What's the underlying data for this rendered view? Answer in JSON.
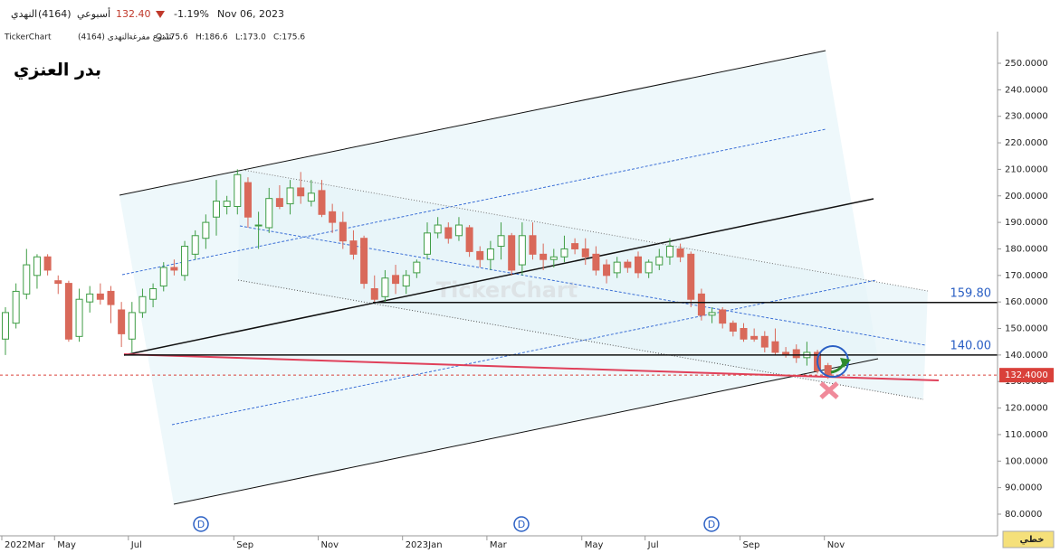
{
  "header": {
    "symbol_name": "النهدي",
    "symbol_code": "(4164)",
    "period": "أسبوعي",
    "price": "132.40",
    "change": "-1.19%",
    "date": "Nov 06, 2023",
    "source": "TickerChart",
    "instrument": "النهدى (4164)",
    "style": "شموع مفرغة",
    "o": "O:175.6",
    "h": "H:186.6",
    "l": "L:173.0",
    "c": "C:175.6",
    "author": "بدر العنزي",
    "watermark": "TickerChart",
    "mode_button": "خطي"
  },
  "chart_data": {
    "type": "candlestick",
    "categories": [
      "2022Mar",
      null,
      null,
      null,
      null,
      "May",
      null,
      null,
      null,
      null,
      null,
      null,
      "Jul",
      null,
      null,
      null,
      null,
      null,
      null,
      null,
      null,
      null,
      "Sep",
      null,
      null,
      null,
      null,
      null,
      null,
      null,
      "Nov",
      null,
      null,
      null,
      null,
      null,
      null,
      null,
      "2023Jan",
      null,
      null,
      null,
      null,
      null,
      null,
      null,
      "Mar",
      null,
      null,
      null,
      null,
      null,
      null,
      null,
      null,
      "May",
      null,
      null,
      null,
      null,
      null,
      "Jul",
      null,
      null,
      null,
      null,
      null,
      null,
      null,
      null,
      "Sep",
      null,
      null,
      null,
      null,
      null,
      null,
      null,
      "Nov"
    ],
    "open": [
      146,
      152,
      163,
      170,
      177,
      168,
      167,
      147,
      160,
      163,
      164,
      157,
      146,
      156,
      161,
      166,
      173,
      170,
      178,
      184,
      192,
      196,
      196,
      205,
      189,
      188,
      199,
      197,
      203,
      198,
      202,
      194,
      190,
      183,
      184,
      165,
      162,
      170,
      166,
      171,
      178,
      186,
      188,
      185,
      188,
      179,
      176,
      181,
      185,
      174,
      185,
      178,
      176,
      177,
      182,
      180,
      178,
      174,
      171,
      175,
      177,
      171,
      174,
      177,
      180,
      178,
      163,
      155,
      157,
      152,
      150,
      147,
      147,
      145,
      141,
      142,
      139,
      141,
      136
    ],
    "high": [
      158,
      167,
      180,
      178,
      178,
      170,
      168,
      165,
      166,
      167,
      166,
      160,
      160,
      165,
      167,
      175,
      176,
      183,
      187,
      193,
      206,
      200,
      210,
      207,
      194,
      203,
      204,
      206,
      209,
      206,
      206,
      197,
      194,
      187,
      185,
      170,
      172,
      174,
      172,
      176,
      190,
      192,
      190,
      192,
      189,
      181,
      183,
      190,
      186,
      190,
      190,
      182,
      180,
      185,
      184,
      184,
      181,
      176,
      177,
      176,
      179,
      176,
      180,
      184,
      182,
      179,
      165,
      158,
      158,
      153,
      152,
      150,
      149,
      150,
      143,
      144,
      145,
      142,
      137
    ],
    "low": [
      140,
      150,
      161,
      165,
      170,
      163,
      145,
      145,
      156,
      159,
      152,
      143,
      141,
      154,
      158,
      164,
      170,
      168,
      176,
      180,
      185,
      193,
      193,
      188,
      180,
      186,
      195,
      193,
      197,
      196,
      192,
      186,
      180,
      176,
      165,
      160,
      160,
      163,
      163,
      169,
      176,
      184,
      182,
      183,
      177,
      173,
      172,
      176,
      170,
      170,
      176,
      172,
      173,
      175,
      178,
      174,
      170,
      167,
      169,
      171,
      169,
      169,
      172,
      174,
      175,
      158,
      153,
      152,
      150,
      147,
      145,
      145,
      141,
      140,
      139,
      137,
      136,
      133,
      131
    ],
    "close": [
      156,
      164,
      174,
      177,
      172,
      167,
      146,
      161,
      163,
      161,
      159,
      148,
      156,
      162,
      165,
      173,
      172,
      181,
      185,
      190,
      198,
      198,
      208,
      192,
      189,
      199,
      196,
      203,
      200,
      201,
      193,
      190,
      183,
      178,
      167,
      161,
      169,
      167,
      170,
      175,
      186,
      189,
      184,
      189,
      179,
      176,
      180,
      185,
      172,
      185,
      178,
      176,
      177,
      180,
      180,
      177,
      172,
      170,
      175,
      173,
      171,
      175,
      177,
      181,
      177,
      161,
      155,
      156,
      152,
      149,
      146,
      146,
      143,
      141,
      140,
      139,
      141,
      134,
      132.4
    ],
    "up_color": "#3f9d45",
    "down_color": "#d9695a",
    "ylim": [
      71.82,
      261.92
    ],
    "yticks": [
      {
        "value": 80,
        "label": "80.0000"
      },
      {
        "value": 90,
        "label": "90.0000"
      },
      {
        "value": 100,
        "label": "100.0000"
      },
      {
        "value": 110,
        "label": "110.0000"
      },
      {
        "value": 120,
        "label": "120.0000"
      },
      {
        "value": 130,
        "label": "130.0000"
      },
      {
        "value": 140,
        "label": "140.0000"
      },
      {
        "value": 150,
        "label": "150.0000"
      },
      {
        "value": 160,
        "label": "160.0000"
      },
      {
        "value": 170,
        "label": "170.0000"
      },
      {
        "value": 180,
        "label": "180.0000"
      },
      {
        "value": 190,
        "label": "190.0000"
      },
      {
        "value": 200,
        "label": "200.0000"
      },
      {
        "value": 210,
        "label": "210.0000"
      },
      {
        "value": 220,
        "label": "220.0000"
      },
      {
        "value": 230,
        "label": "230.0000"
      },
      {
        "value": 240,
        "label": "240.0000"
      },
      {
        "value": 250,
        "label": "250.0000"
      }
    ],
    "hlines": [
      {
        "value": 159.8,
        "label": "159.80"
      },
      {
        "value": 140,
        "label": "140.00"
      }
    ],
    "last_price": {
      "value": 132.4,
      "label": "132.4000"
    },
    "marker_label": "D"
  }
}
